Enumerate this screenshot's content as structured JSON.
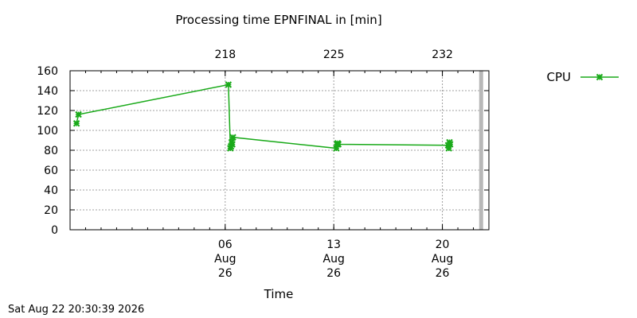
{
  "chart_data": {
    "type": "line",
    "title": "Processing time EPNFINAL in [min]",
    "xlabel": "Time",
    "ylabel": "",
    "ylim": [
      0,
      160
    ],
    "yticks": [
      0,
      20,
      40,
      60,
      80,
      100,
      120,
      140,
      160
    ],
    "xlim": [
      "2026-07-27",
      "2026-08-23"
    ],
    "grid": true,
    "legend_position": "top-right",
    "bottom_ticks": [
      {
        "date": "2026-08-06",
        "lines": [
          "06",
          "Aug",
          "26"
        ]
      },
      {
        "date": "2026-08-13",
        "lines": [
          "13",
          "Aug",
          "26"
        ]
      },
      {
        "date": "2026-08-20",
        "lines": [
          "20",
          "Aug",
          "26"
        ]
      }
    ],
    "top_ticks": [
      {
        "date": "2026-08-06",
        "label": "218"
      },
      {
        "date": "2026-08-13",
        "label": "225"
      },
      {
        "date": "2026-08-20",
        "label": "232"
      }
    ],
    "current_time_marker": "2026-08-22",
    "series": [
      {
        "name": "CPU",
        "color": "#1aaa1a",
        "marker": "x",
        "points": [
          {
            "x": "2026-07-27 10:00",
            "y": 107
          },
          {
            "x": "2026-07-27 13:00",
            "y": 116
          },
          {
            "x": "2026-08-06 05:00",
            "y": 146
          },
          {
            "x": "2026-08-06 08:00",
            "y": 82
          },
          {
            "x": "2026-08-06 09:00",
            "y": 84
          },
          {
            "x": "2026-08-06 10:00",
            "y": 88
          },
          {
            "x": "2026-08-06 11:00",
            "y": 86
          },
          {
            "x": "2026-08-06 12:00",
            "y": 93
          },
          {
            "x": "2026-08-13 04:00",
            "y": 82
          },
          {
            "x": "2026-08-13 05:00",
            "y": 86
          },
          {
            "x": "2026-08-13 06:00",
            "y": 87
          },
          {
            "x": "2026-08-13 07:00",
            "y": 86
          },
          {
            "x": "2026-08-20 09:00",
            "y": 85
          },
          {
            "x": "2026-08-20 10:00",
            "y": 82
          },
          {
            "x": "2026-08-20 11:00",
            "y": 88
          },
          {
            "x": "2026-08-20 12:00",
            "y": 86
          }
        ]
      }
    ]
  },
  "footer": {
    "timestamp": "Sat Aug 22 20:30:39 2026"
  }
}
